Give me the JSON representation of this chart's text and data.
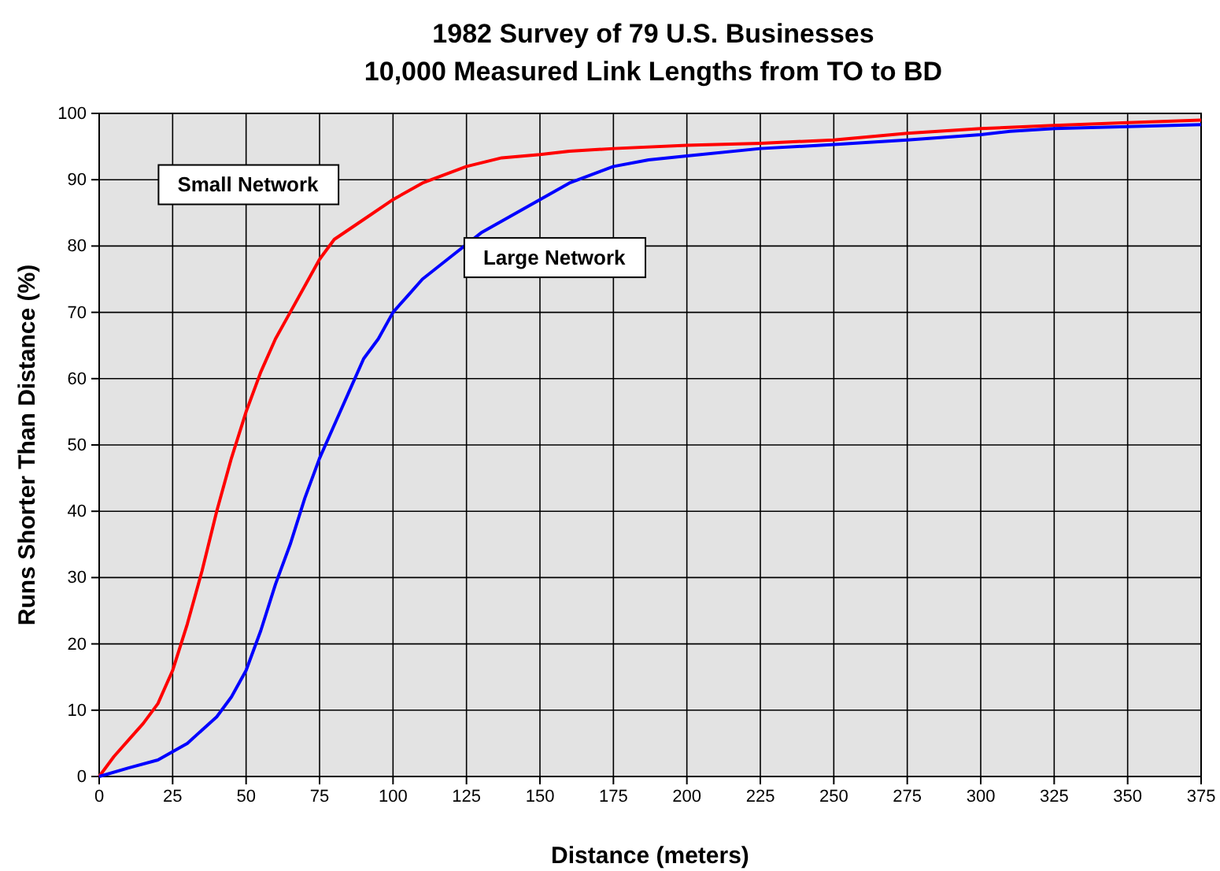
{
  "chart_data": {
    "type": "line",
    "title": "1982 Survey of 79 U.S. Businesses",
    "subtitle": "10,000 Measured Link Lengths from TO to BD",
    "xlabel": "Distance (meters)",
    "ylabel": "Runs Shorter Than Distance (%)",
    "xlim": [
      0,
      375
    ],
    "xticks": [
      0,
      25,
      50,
      75,
      100,
      125,
      150,
      175,
      200,
      225,
      250,
      275,
      300,
      325,
      350,
      375
    ],
    "ylim": [
      0,
      100
    ],
    "yticks": [
      0,
      10,
      20,
      30,
      40,
      50,
      60,
      70,
      80,
      90,
      100
    ],
    "grid": true,
    "series": [
      {
        "name": "Small Network",
        "color": "#ff0000",
        "x": [
          0,
          5,
          10,
          15,
          20,
          25,
          30,
          35,
          40,
          45,
          50,
          55,
          60,
          65,
          70,
          75,
          80,
          90,
          100,
          110,
          125,
          137,
          150,
          160,
          175,
          200,
          225,
          250,
          275,
          300,
          325,
          350,
          375
        ],
        "values": [
          0,
          3,
          5.5,
          8,
          11,
          16,
          23,
          31,
          40,
          48,
          55,
          61,
          66,
          70,
          74,
          78,
          81,
          84,
          87,
          89.5,
          92,
          93.3,
          93.8,
          94.3,
          94.7,
          95.2,
          95.5,
          96,
          97,
          97.7,
          98.2,
          98.6,
          99
        ]
      },
      {
        "name": "Large Network",
        "color": "#0000ff",
        "x": [
          0,
          10,
          20,
          30,
          40,
          45,
          50,
          55,
          60,
          65,
          70,
          75,
          80,
          85,
          90,
          95,
          100,
          105,
          110,
          120,
          130,
          140,
          150,
          160,
          175,
          187,
          200,
          225,
          250,
          275,
          300,
          310,
          325,
          350,
          375
        ],
        "values": [
          0,
          1.3,
          2.5,
          5,
          9,
          12,
          16,
          22,
          29,
          35,
          42,
          48,
          53,
          58,
          63,
          66,
          70,
          72.5,
          75,
          78.5,
          82,
          84.5,
          87,
          89.5,
          92,
          93,
          93.6,
          94.7,
          95.3,
          96,
          96.8,
          97.3,
          97.7,
          98,
          98.3
        ]
      }
    ]
  }
}
